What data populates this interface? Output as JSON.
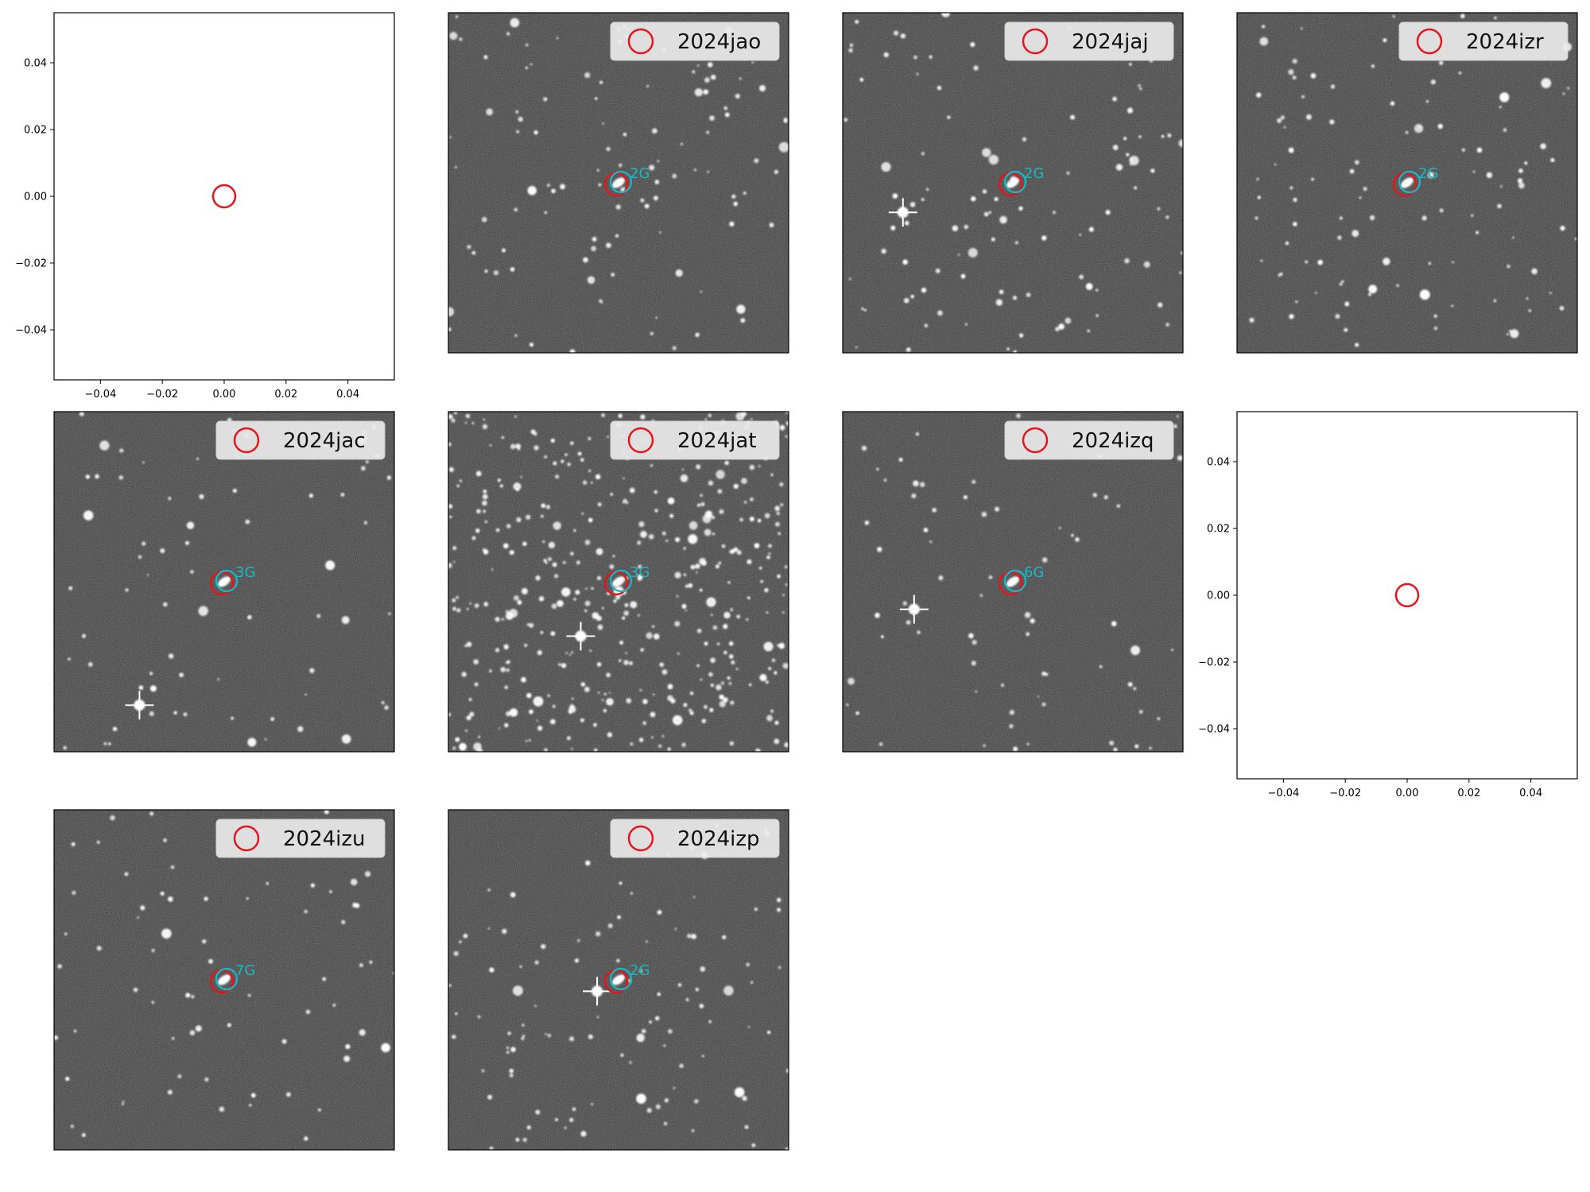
{
  "figure": {
    "colors": {
      "marker_red": "#e8141d",
      "marker_cyan": "#19b9c4",
      "sky_gray": "#7d7d7d",
      "legend_bg": "#ebebeb"
    }
  },
  "chart_data": [
    {
      "type": "scatter",
      "panel": "empty-axes",
      "x": [
        0.0
      ],
      "y": [
        0.0
      ],
      "xlim": [
        -0.055,
        0.055
      ],
      "ylim": [
        -0.055,
        0.055
      ],
      "xticks": [
        "−0.04",
        "−0.02",
        "0.00",
        "0.02",
        "0.04"
      ],
      "yticks": [
        "0.04",
        "0.02",
        "0.00",
        "−0.02",
        "−0.04"
      ],
      "grid": false
    },
    {
      "type": "image",
      "panel": "cutout",
      "legend": "2024jao",
      "legend_location": "upper right",
      "host_label": "2G",
      "sky_density": "medium"
    },
    {
      "type": "image",
      "panel": "cutout",
      "legend": "2024jaj",
      "legend_location": "upper right",
      "host_label": "2G",
      "sky_density": "medium"
    },
    {
      "type": "image",
      "panel": "cutout",
      "legend": "2024izr",
      "legend_location": "upper right",
      "host_label": "2G",
      "sky_density": "medium"
    },
    {
      "type": "image",
      "panel": "cutout",
      "legend": "2024jac",
      "legend_location": "upper right",
      "host_label": "3G",
      "sky_density": "low"
    },
    {
      "type": "image",
      "panel": "cutout",
      "legend": "2024jat",
      "legend_location": "upper right",
      "host_label": "3G",
      "sky_density": "high"
    },
    {
      "type": "image",
      "panel": "cutout",
      "legend": "2024izq",
      "legend_location": "upper right",
      "host_label": "6G",
      "sky_density": "low"
    },
    {
      "type": "scatter",
      "panel": "empty-axes",
      "x": [
        0.0
      ],
      "y": [
        0.0
      ],
      "xlim": [
        -0.055,
        0.055
      ],
      "ylim": [
        -0.055,
        0.055
      ],
      "xticks": [
        "−0.04",
        "−0.02",
        "0.00",
        "0.02",
        "0.04"
      ],
      "yticks": [
        "0.04",
        "0.02",
        "0.00",
        "−0.02",
        "−0.04"
      ],
      "grid": false
    },
    {
      "type": "image",
      "panel": "cutout",
      "legend": "2024izu",
      "legend_location": "upper right",
      "host_label": "7G",
      "sky_density": "low"
    },
    {
      "type": "image",
      "panel": "cutout",
      "legend": "2024izp",
      "legend_location": "upper right",
      "host_label": "2G",
      "sky_density": "medium"
    }
  ]
}
